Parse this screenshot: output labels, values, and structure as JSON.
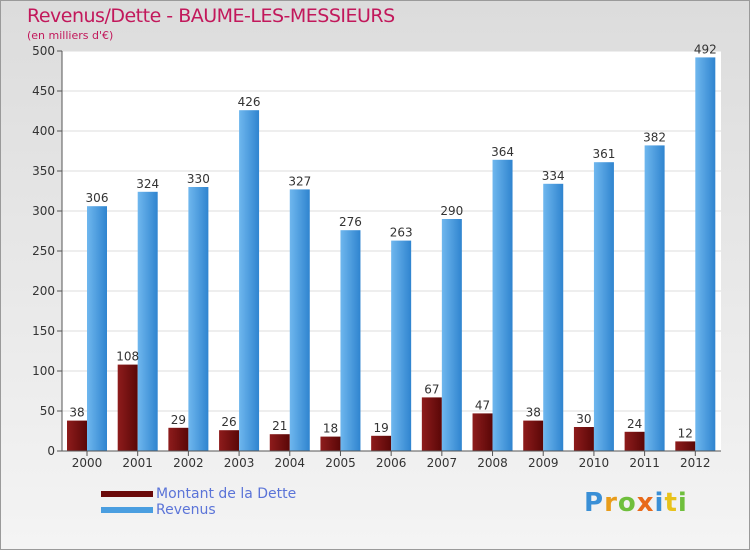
{
  "header": {
    "title": "Revenus/Dette - BAUME-LES-MESSIEURS",
    "subtitle": "(en milliers d'€)"
  },
  "chart_data": {
    "type": "bar",
    "title": "Revenus/Dette - BAUME-LES-MESSIEURS",
    "ylabel": "(en milliers d'€)",
    "xlabel": "",
    "categories": [
      "2000",
      "2001",
      "2002",
      "2003",
      "2004",
      "2005",
      "2006",
      "2007",
      "2008",
      "2009",
      "2010",
      "2011",
      "2012"
    ],
    "series": [
      {
        "name": "Montant de la Dette",
        "color": "#7a1212",
        "values": [
          38,
          108,
          29,
          26,
          21,
          18,
          19,
          67,
          47,
          38,
          30,
          24,
          12
        ]
      },
      {
        "name": "Revenus",
        "color": "#4a9ee0",
        "values": [
          306,
          324,
          330,
          426,
          327,
          276,
          263,
          290,
          364,
          334,
          361,
          382,
          492
        ]
      }
    ],
    "ylim": [
      0,
      500
    ],
    "yticks": [
      0,
      50,
      100,
      150,
      200,
      250,
      300,
      350,
      400,
      450,
      500
    ],
    "grid": true,
    "legend": "bottom-left"
  },
  "legend": {
    "items": [
      {
        "label": "Montant de la Dette",
        "color": "#6b0a0a"
      },
      {
        "label": "Revenus",
        "color": "#4a9ee0"
      }
    ]
  },
  "logo": {
    "letters": [
      "P",
      "r",
      "o",
      "x",
      "i",
      "t",
      "i"
    ],
    "colors": [
      "#3a8fd6",
      "#e89c1a",
      "#6fbf3c",
      "#e86a1a",
      "#3a8fd6",
      "#e8c21a",
      "#6fbf3c"
    ]
  }
}
